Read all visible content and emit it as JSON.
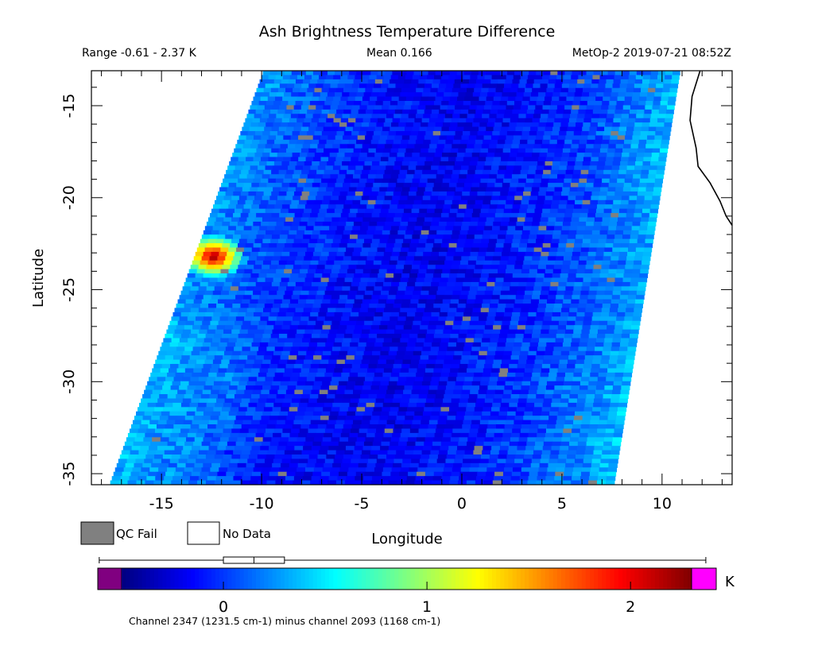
{
  "chart_data": {
    "type": "heatmap",
    "title": "Ash Brightness Temperature Difference",
    "range_text": "Range -0.61 - 2.37 K",
    "mean_text": "Mean 0.166",
    "satellite_text": "MetOp-2 2019-07-21 08:52Z",
    "xlabel": "Longitude",
    "ylabel": "Latitude",
    "xlim": [
      -18.5,
      13.5
    ],
    "ylim": [
      -35.6,
      -13.1
    ],
    "x_ticks": [
      {
        "value": -15,
        "label": "-15"
      },
      {
        "value": -10,
        "label": "-10"
      },
      {
        "value": -5,
        "label": "-5"
      },
      {
        "value": 0,
        "label": "0"
      },
      {
        "value": 5,
        "label": "5"
      },
      {
        "value": 10,
        "label": "10"
      }
    ],
    "y_ticks": [
      {
        "value": -15,
        "label": "-15"
      },
      {
        "value": -20,
        "label": "-20"
      },
      {
        "value": -25,
        "label": "-25"
      },
      {
        "value": -30,
        "label": "-30"
      },
      {
        "value": -35,
        "label": "-35"
      }
    ],
    "swath": {
      "top_left": [
        -9.9,
        -13.1
      ],
      "top_right": [
        10.9,
        -13.1
      ],
      "bottom_left": [
        -17.6,
        -35.6
      ],
      "bottom_right": [
        7.6,
        -35.6
      ]
    },
    "hotspot": {
      "lon": -12.4,
      "lat": -23.2,
      "value": 2.37
    },
    "value_range": [
      -0.61,
      2.37
    ],
    "mean_value": 0.166,
    "coastline": [
      [
        11.9,
        -13.1
      ],
      [
        11.5,
        -14.5
      ],
      [
        11.4,
        -15.8
      ],
      [
        11.7,
        -17.3
      ],
      [
        11.8,
        -18.3
      ],
      [
        12.4,
        -19.2
      ],
      [
        12.9,
        -20.2
      ],
      [
        13.2,
        -21.0
      ],
      [
        13.5,
        -21.5
      ]
    ],
    "legend": {
      "qc_fail_label": "QC Fail",
      "no_data_label": "No Data",
      "qc_fail_color": "#808080",
      "no_data_color": "#ffffff"
    },
    "colorbar": {
      "unit": "K",
      "ticks": [
        {
          "value": 0,
          "label": "0"
        },
        {
          "value": 1,
          "label": "1"
        },
        {
          "value": 2,
          "label": "2"
        }
      ],
      "vmin": -0.5,
      "vmax": 2.3,
      "under_color": "#800080",
      "over_color": "#ff00ff",
      "caption": "Channel 2347 (1231.5 cm-1) minus channel 2093 (1168 cm-1)"
    },
    "boxplot": {
      "min": -0.61,
      "q1": 0.0,
      "median": 0.15,
      "q3": 0.3,
      "max": 2.37
    }
  }
}
